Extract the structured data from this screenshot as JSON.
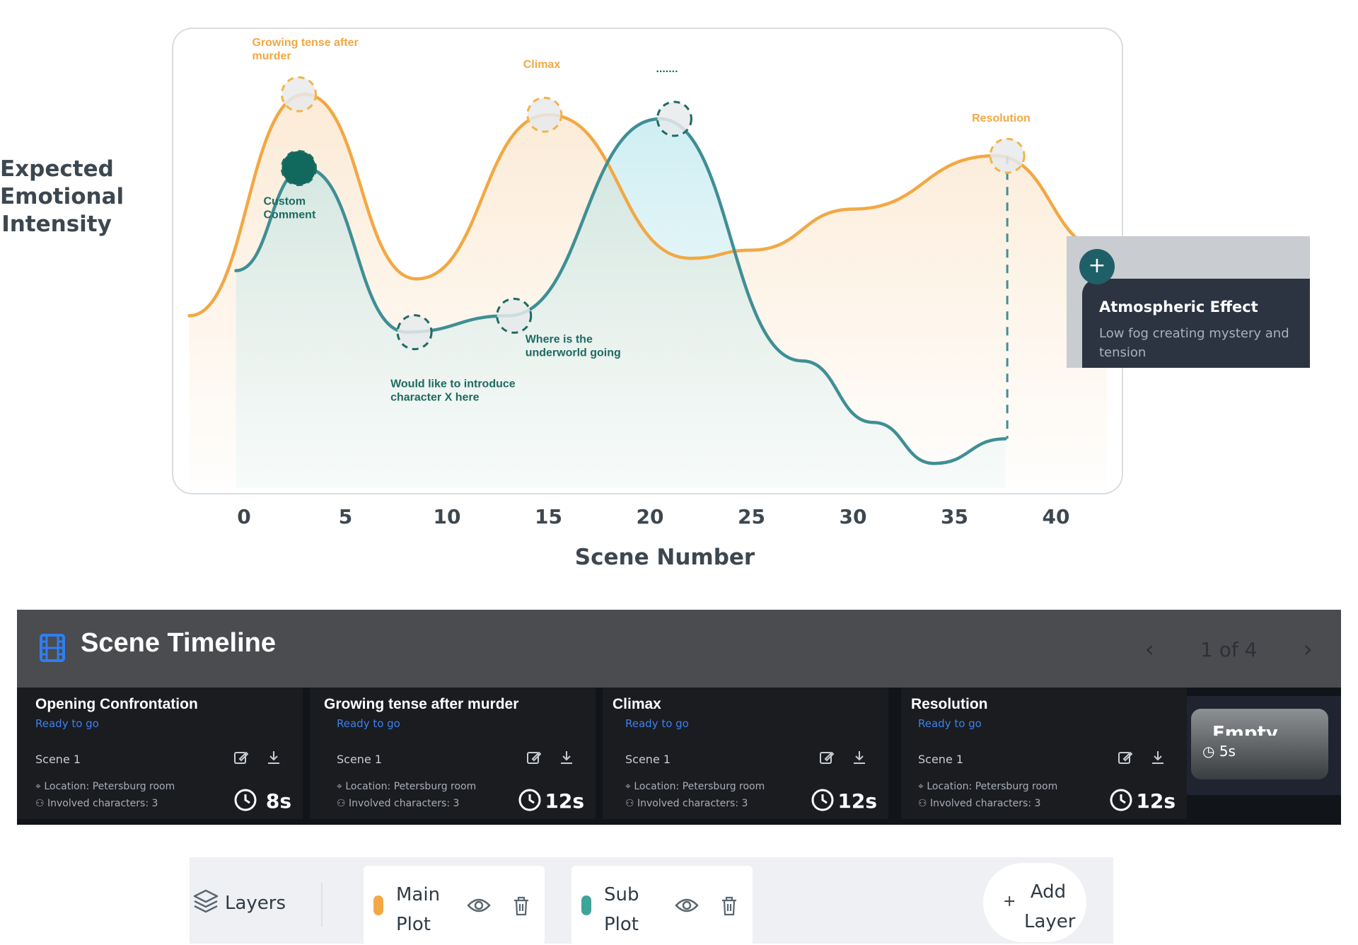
{
  "chart_data": {
    "type": "area",
    "ylabel": "Expected Emotional Intensity",
    "xlabel": "Scene Number",
    "xticks": [
      0,
      5,
      10,
      15,
      20,
      25,
      30,
      35,
      40
    ],
    "xlim": [
      -3,
      42
    ],
    "ylim": [
      0,
      10
    ],
    "grid": false,
    "series": [
      {
        "name": "Main Plot",
        "color": "#f2a844",
        "points": [
          [
            -2.7,
            4.2
          ],
          [
            3,
            9.6
          ],
          [
            8.5,
            5.1
          ],
          [
            15,
            9.1
          ],
          [
            22,
            5.6
          ],
          [
            25,
            5.8
          ],
          [
            30,
            6.8
          ],
          [
            37,
            8.1
          ],
          [
            42.5,
            5.8
          ]
        ]
      },
      {
        "name": "Sub Plot",
        "color": "#3f8f95",
        "points": [
          [
            -0.4,
            5.3
          ],
          [
            3,
            7.8
          ],
          [
            8,
            3.8
          ],
          [
            13,
            4.2
          ],
          [
            20.5,
            9.0
          ],
          [
            27.5,
            3.1
          ],
          [
            31,
            1.6
          ],
          [
            34,
            0.6
          ],
          [
            37.5,
            1.2
          ]
        ]
      }
    ],
    "markers": [
      {
        "series": "Main Plot",
        "x": 2.7,
        "y": 9.6,
        "label": "Growing tense after murder"
      },
      {
        "series": "Sub Plot",
        "x": 2.7,
        "y": 7.8,
        "label": "Custom Comment"
      },
      {
        "series": "Sub Plot",
        "x": 8.4,
        "y": 3.8,
        "label": "Would like to introduce character X here"
      },
      {
        "series": "Sub Plot",
        "x": 13.3,
        "y": 4.2,
        "label": "Where is the underworld going"
      },
      {
        "series": "Main Plot",
        "x": 14.8,
        "y": 9.1,
        "label": "Climax"
      },
      {
        "series": "Sub Plot",
        "x": 21.2,
        "y": 9.0,
        "label": "......."
      },
      {
        "series": "Main Plot",
        "x": 37.6,
        "y": 8.1,
        "label": "Resolution"
      }
    ]
  },
  "tooltip": {
    "title": "Atmospheric Effect",
    "description": "Low fog creating mystery and tension"
  },
  "timeline": {
    "title": "Scene Timeline",
    "page_indicator": "1 of 4",
    "empty_scene": {
      "title": "Empty Scene",
      "duration": "5s"
    },
    "scenes": [
      {
        "title": "Opening Confrontation",
        "status": "Ready to go",
        "scene": "Scene 1",
        "location": "Location: Petersburg room",
        "characters": "Involved characters: 3",
        "duration": "8s"
      },
      {
        "title": "Growing tense after murder",
        "status": "Ready to go",
        "scene": "Scene 1",
        "location": "Location: Petersburg room",
        "characters": "Involved characters: 3",
        "duration": "12s"
      },
      {
        "title": "Climax",
        "status": "Ready to go",
        "scene": "Scene 1",
        "location": "Location: Petersburg room",
        "characters": "Involved characters: 3",
        "duration": "12s"
      },
      {
        "title": "Resolution",
        "status": "Ready to go",
        "scene": "Scene 1",
        "location": "Location: Petersburg room",
        "characters": "Involved characters: 3",
        "duration": "12s"
      }
    ]
  },
  "layers": {
    "label": "Layers",
    "items": [
      {
        "name": "Main Plot",
        "color": "#f2a844"
      },
      {
        "name": "Sub Plot",
        "color": "#3fa39a"
      }
    ],
    "add_label": "Add Layer"
  }
}
